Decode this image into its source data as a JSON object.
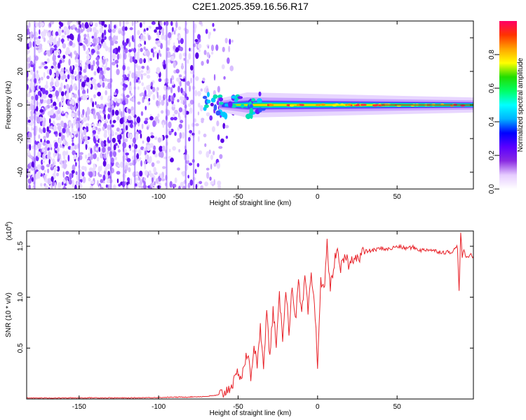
{
  "chart_data": [
    {
      "type": "heatmap",
      "title": "C2E1.2025.359.16.56.R17",
      "xlabel": "Height of straight line (km)",
      "ylabel": "Frequency (Hz)",
      "xlim": [
        -183,
        98
      ],
      "ylim": [
        -50,
        50
      ],
      "xticks": [
        -150,
        -100,
        -50,
        0,
        50
      ],
      "yticks": [
        -40,
        -20,
        0,
        20,
        40
      ],
      "colorbar": {
        "label": "Normalized spectral amplitude",
        "range": [
          0,
          1
        ],
        "ticks": [
          "0.0",
          "0.2",
          "0.4",
          "0.6",
          "0.8"
        ],
        "colors": [
          "#ffffff",
          "#e6ccff",
          "#8a2be2",
          "#5a00ff",
          "#0000ff",
          "#00b4ff",
          "#00ffff",
          "#00ff66",
          "#22dd00",
          "#ffff00",
          "#ffa500",
          "#ff3300",
          "#ff0066"
        ]
      },
      "description_values": {
        "noise_region_km": [
          -183,
          -60
        ],
        "signal_onset_km": -62,
        "signal_frequency_hz": 0
      }
    },
    {
      "type": "line",
      "xlabel": "Height of straight line (km)",
      "ylabel": "SNR (10 * v/v)",
      "multiplier": "(x10",
      "multiplier_exp": "4",
      "multiplier_close": ")",
      "xlim": [
        -183,
        98
      ],
      "ylim": [
        0,
        1.65
      ],
      "xticks": [
        -150,
        -100,
        -50,
        0,
        50
      ],
      "yticks": [
        0.5,
        1.0,
        1.5
      ],
      "ytick_labels": [
        "0.5",
        "1.0",
        "1.5"
      ],
      "line_color": "#e8232a",
      "series": [
        {
          "name": "SNR",
          "x": [
            -183,
            -160,
            -140,
            -120,
            -100,
            -80,
            -70,
            -62,
            -58,
            -55,
            -52,
            -50,
            -48,
            -46,
            -44,
            -42,
            -40,
            -38,
            -36,
            -34,
            -32,
            -30,
            -28,
            -26,
            -24,
            -22,
            -20,
            -18,
            -16,
            -14,
            -12,
            -10,
            -8,
            -6,
            -4,
            -2,
            0,
            2,
            4,
            6,
            8,
            10,
            12,
            14,
            16,
            18,
            20,
            22,
            24,
            26,
            28,
            30,
            35,
            40,
            45,
            50,
            55,
            60,
            65,
            70,
            75,
            80,
            85,
            88,
            89,
            90,
            91,
            92,
            94,
            96,
            98
          ],
          "y": [
            0.01,
            0.01,
            0.012,
            0.01,
            0.015,
            0.02,
            0.025,
            0.04,
            0.07,
            0.12,
            0.18,
            0.28,
            0.2,
            0.35,
            0.45,
            0.2,
            0.55,
            0.3,
            0.7,
            0.35,
            0.85,
            0.4,
            0.9,
            0.5,
            1.0,
            0.6,
            1.1,
            0.65,
            1.15,
            0.75,
            1.15,
            0.8,
            1.2,
            0.85,
            1.2,
            0.95,
            0.35,
            1.15,
            1.05,
            1.52,
            1.1,
            1.25,
            1.5,
            1.25,
            1.35,
            1.4,
            1.3,
            1.38,
            1.42,
            1.36,
            1.44,
            1.45,
            1.46,
            1.48,
            1.47,
            1.5,
            1.48,
            1.49,
            1.46,
            1.47,
            1.45,
            1.44,
            1.45,
            1.5,
            1.05,
            1.62,
            1.4,
            1.45,
            1.38,
            1.42,
            1.4
          ]
        }
      ]
    }
  ]
}
